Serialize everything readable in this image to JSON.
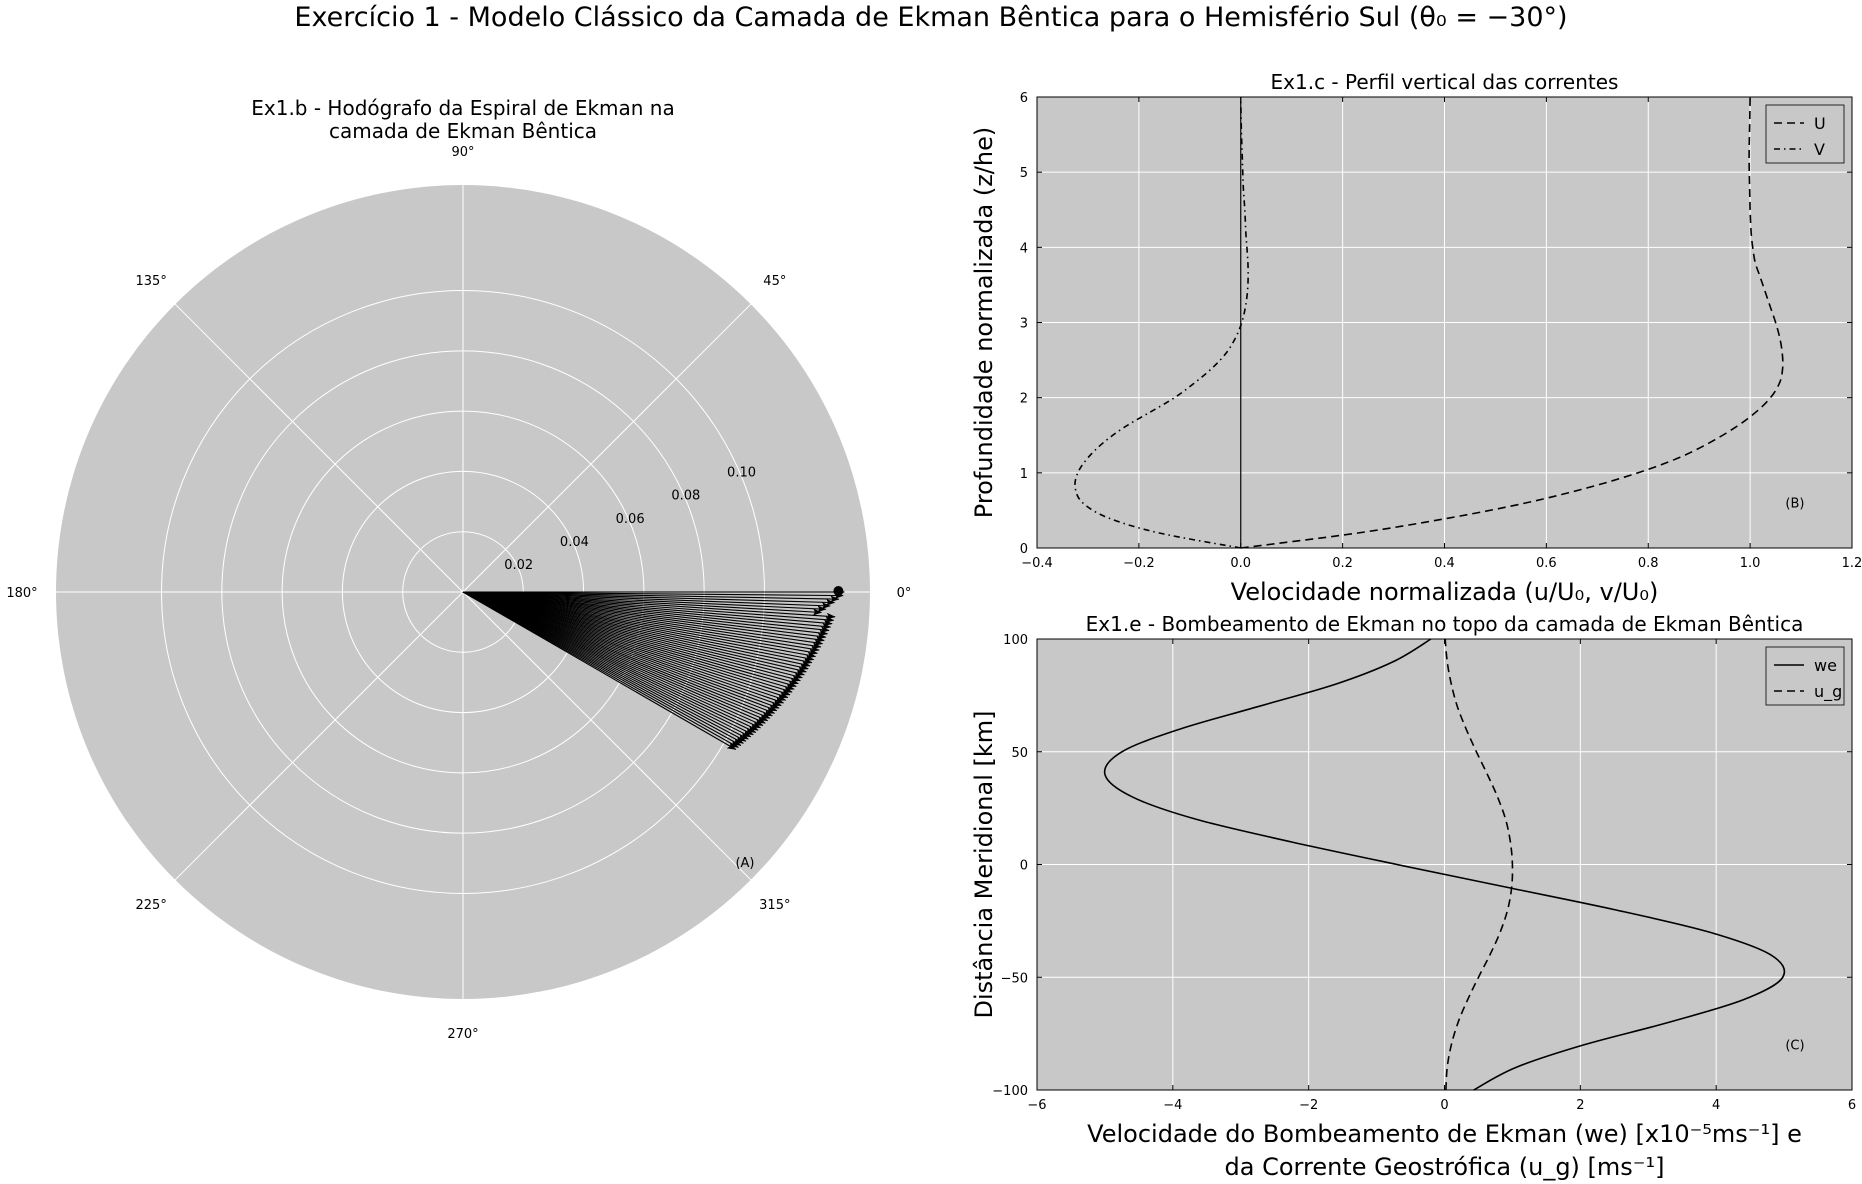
{
  "figure": {
    "suptitle": "Exercício 1 - Modelo Clássico da Camada de Ekman Bêntica para o Hemisfério Sul (θ₀ = −30°)"
  },
  "colors": {
    "axes_bg": "#c8c8c8",
    "grid": "#ffffff",
    "ink": "#000000"
  },
  "chart_data": [
    {
      "id": "A",
      "type": "polar-quiver",
      "title": "Ex1.b - Hodógrafo da Espiral de Ekman na camada de Ekman Bêntica",
      "title_lines": [
        "Ex1.b - Hodógrafo da Espiral de Ekman na",
        "camada de Ekman Bêntica"
      ],
      "panel_label": "(A)",
      "r_lim": [
        0,
        0.135
      ],
      "r_ticks": [
        0.02,
        0.04,
        0.06,
        0.08,
        0.1
      ],
      "r_tick_labels": [
        "0.02",
        "0.04",
        "0.06",
        "0.08",
        "0.10"
      ],
      "theta_ticks": [
        0,
        45,
        90,
        135,
        180,
        225,
        270,
        315
      ],
      "theta_tick_labels": [
        "0°",
        "45°",
        "90°",
        "135°",
        "180°",
        "225°",
        "270°",
        "315°"
      ],
      "grid": true,
      "arrows": {
        "count": 56,
        "theta_deg_range": [
          0,
          -30
        ],
        "tip_radius_range": [
          0.1265,
          0.1045
        ],
        "tip_inset_near_zero": [
          0.0,
          0.0,
          0.001,
          0.002,
          0.003,
          0.004,
          0.005
        ],
        "description_free": true
      }
    },
    {
      "id": "B",
      "type": "line",
      "title": "Ex1.c - Perfil vertical das correntes",
      "panel_label": "(B)",
      "xlabel": "Velocidade normalizada (u/U₀, v/U₀)",
      "ylabel": "Profundidade normalizada (z/he)",
      "xlim": [
        -0.4,
        1.2
      ],
      "ylim": [
        0,
        6
      ],
      "x_ticks": [
        -0.4,
        -0.2,
        0.0,
        0.2,
        0.4,
        0.6,
        0.8,
        1.0,
        1.2
      ],
      "x_tick_labels": [
        "−0.4",
        "−0.2",
        "0.0",
        "0.2",
        "0.4",
        "0.6",
        "0.8",
        "1.0",
        "1.2"
      ],
      "y_ticks": [
        0,
        1,
        2,
        3,
        4,
        5,
        6
      ],
      "y_tick_labels": [
        "0",
        "1",
        "2",
        "3",
        "4",
        "5",
        "6"
      ],
      "grid": true,
      "legend_position": "top-right",
      "zero_line_x": 0,
      "series": [
        {
          "name": "U",
          "style": "dashed",
          "x": [
            0.0,
            0.23,
            0.41,
            0.56,
            0.68,
            0.78,
            0.86,
            0.92,
            0.97,
            1.01,
            1.04,
            1.058,
            1.064,
            1.063,
            1.058,
            1.05,
            1.04,
            1.03,
            1.02,
            1.01,
            1.005,
            1.002,
            1.0,
            0.999,
            0.998,
            0.999,
            1.0
          ],
          "y": [
            0.0,
            0.2,
            0.4,
            0.6,
            0.8,
            1.0,
            1.2,
            1.4,
            1.6,
            1.8,
            2.0,
            2.2,
            2.4,
            2.6,
            2.8,
            3.0,
            3.2,
            3.4,
            3.6,
            3.8,
            4.0,
            4.2,
            4.5,
            4.8,
            5.2,
            5.6,
            6.0
          ]
        },
        {
          "name": "V",
          "style": "dashdot",
          "x": [
            0.0,
            -0.16,
            -0.26,
            -0.31,
            -0.325,
            -0.32,
            -0.3,
            -0.27,
            -0.23,
            -0.18,
            -0.13,
            -0.09,
            -0.055,
            -0.028,
            -0.01,
            0.002,
            0.009,
            0.013,
            0.0145,
            0.014,
            0.012,
            0.01,
            0.008,
            0.005,
            0.003,
            0.001,
            0.0
          ],
          "y": [
            0.0,
            0.2,
            0.4,
            0.6,
            0.8,
            1.0,
            1.2,
            1.4,
            1.6,
            1.8,
            2.0,
            2.2,
            2.4,
            2.6,
            2.8,
            3.0,
            3.2,
            3.4,
            3.6,
            3.8,
            4.0,
            4.2,
            4.5,
            4.8,
            5.2,
            5.6,
            6.0
          ]
        }
      ]
    },
    {
      "id": "C",
      "type": "line",
      "title": "Ex1.e - Bombeamento de Ekman no topo da camada de Ekman Bêntica",
      "panel_label": "(C)",
      "xlabel_lines": [
        "Velocidade do Bombeamento de Ekman (we) [x10⁻⁵ms⁻¹] e",
        "da Corrente Geostrófica (u_g) [ms⁻¹]"
      ],
      "ylabel": "Distância Meridional [km]",
      "xlim": [
        -6,
        6
      ],
      "ylim": [
        -100,
        100
      ],
      "x_ticks": [
        -6,
        -4,
        -2,
        0,
        2,
        4,
        6
      ],
      "x_tick_labels": [
        "−6",
        "−4",
        "−2",
        "0",
        "2",
        "4",
        "6"
      ],
      "y_ticks": [
        -100,
        -50,
        0,
        50,
        100
      ],
      "y_tick_labels": [
        "−100",
        "−50",
        "0",
        "50",
        "100"
      ],
      "grid": true,
      "legend_position": "top-right",
      "series": [
        {
          "name": "we",
          "style": "solid",
          "x": [
            0.43,
            1.05,
            2.05,
            3.3,
            4.4,
            4.98,
            4.8,
            3.9,
            2.5,
            0.9,
            -0.7,
            -2.25,
            -3.65,
            -4.6,
            -5.0,
            -4.75,
            -3.9,
            -2.75,
            -1.6,
            -0.75,
            -0.2
          ],
          "y": [
            -100,
            -90,
            -80,
            -70,
            -60,
            -50,
            -40,
            -30,
            -20,
            -10,
            0,
            10,
            20,
            30,
            40,
            50,
            60,
            70,
            80,
            90,
            100
          ]
        },
        {
          "name": "u_g",
          "style": "dashed",
          "x": [
            0.02,
            0.04,
            0.1,
            0.2,
            0.34,
            0.5,
            0.67,
            0.82,
            0.93,
            0.99,
            1.0,
            0.97,
            0.9,
            0.78,
            0.63,
            0.47,
            0.32,
            0.19,
            0.1,
            0.04,
            0.01
          ],
          "y": [
            -100,
            -90,
            -80,
            -70,
            -60,
            -50,
            -40,
            -30,
            -20,
            -10,
            0,
            10,
            20,
            30,
            40,
            50,
            60,
            70,
            80,
            90,
            100
          ]
        }
      ]
    }
  ]
}
